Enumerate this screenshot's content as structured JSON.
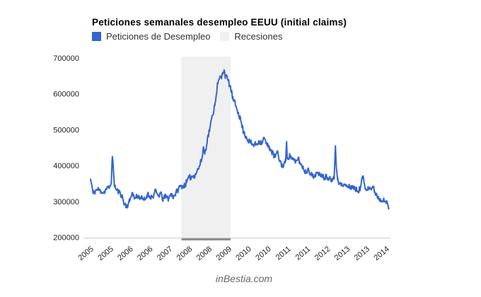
{
  "footer": {
    "watermark": "inBestia.com"
  },
  "chart_data": {
    "type": "line",
    "title": "Peticiones semanales desempleo EEUU (initial claims)",
    "legend": [
      {
        "label": "Peticiones de Desempleo",
        "color": "#3366cc"
      },
      {
        "label": "Recesiones",
        "color": "#f0f0f0"
      }
    ],
    "colors": {
      "line": "#3366cc",
      "recession_band": "#f0f0f0",
      "recession_marker": "#909090",
      "axis_line": "#cccccc",
      "axis_text": "#222222"
    },
    "grid": "off",
    "legend_position": "top-left",
    "y_axis": {
      "min": 200000,
      "max": 700000,
      "tick_step": 100000,
      "ticks": [
        {
          "value": 700000,
          "label": "700000"
        },
        {
          "value": 600000,
          "label": "600000"
        },
        {
          "value": 500000,
          "label": "500000"
        },
        {
          "value": 400000,
          "label": "400000"
        },
        {
          "value": 300000,
          "label": "300000"
        },
        {
          "value": 200000,
          "label": "200000"
        }
      ]
    },
    "x_axis": {
      "min": 2004.8,
      "max": 2014.7,
      "ticks": [
        {
          "t": 2005.0,
          "label": "2005"
        },
        {
          "t": 2005.633,
          "label": "2005"
        },
        {
          "t": 2006.267,
          "label": "2006"
        },
        {
          "t": 2006.9,
          "label": "2006"
        },
        {
          "t": 2007.533,
          "label": "2007"
        },
        {
          "t": 2008.167,
          "label": "2008"
        },
        {
          "t": 2008.8,
          "label": "2008"
        },
        {
          "t": 2009.433,
          "label": "2009"
        },
        {
          "t": 2010.067,
          "label": "2010"
        },
        {
          "t": 2010.7,
          "label": "2010"
        },
        {
          "t": 2011.333,
          "label": "2011"
        },
        {
          "t": 2011.967,
          "label": "2011"
        },
        {
          "t": 2012.6,
          "label": "2012"
        },
        {
          "t": 2013.233,
          "label": "2013"
        },
        {
          "t": 2013.867,
          "label": "2013"
        },
        {
          "t": 2014.5,
          "label": "2014"
        }
      ]
    },
    "recessions": [
      {
        "start": 2007.92,
        "end": 2009.5
      }
    ],
    "series": [
      {
        "name": "Peticiones de Desempleo",
        "color": "#3366cc",
        "points": [
          [
            2005.0,
            362000
          ],
          [
            2005.04,
            345000
          ],
          [
            2005.08,
            322000
          ],
          [
            2005.17,
            331000
          ],
          [
            2005.25,
            333000
          ],
          [
            2005.33,
            329000
          ],
          [
            2005.42,
            324000
          ],
          [
            2005.5,
            334000
          ],
          [
            2005.58,
            338000
          ],
          [
            2005.63,
            342000
          ],
          [
            2005.67,
            360000
          ],
          [
            2005.7,
            425000
          ],
          [
            2005.73,
            394000
          ],
          [
            2005.77,
            345000
          ],
          [
            2005.83,
            332000
          ],
          [
            2005.92,
            325000
          ],
          [
            2006.0,
            318000
          ],
          [
            2006.08,
            293000
          ],
          [
            2006.17,
            287000
          ],
          [
            2006.25,
            299000
          ],
          [
            2006.33,
            324000
          ],
          [
            2006.42,
            308000
          ],
          [
            2006.5,
            316000
          ],
          [
            2006.58,
            312000
          ],
          [
            2006.67,
            306000
          ],
          [
            2006.75,
            304000
          ],
          [
            2006.83,
            320000
          ],
          [
            2006.92,
            314000
          ],
          [
            2007.0,
            312000
          ],
          [
            2007.08,
            328000
          ],
          [
            2007.17,
            316000
          ],
          [
            2007.25,
            322000
          ],
          [
            2007.33,
            306000
          ],
          [
            2007.42,
            314000
          ],
          [
            2007.5,
            308000
          ],
          [
            2007.58,
            320000
          ],
          [
            2007.67,
            314000
          ],
          [
            2007.75,
            324000
          ],
          [
            2007.83,
            336000
          ],
          [
            2007.92,
            344000
          ],
          [
            2008.0,
            343000
          ],
          [
            2008.08,
            352000
          ],
          [
            2008.17,
            366000
          ],
          [
            2008.25,
            369000
          ],
          [
            2008.33,
            372000
          ],
          [
            2008.42,
            384000
          ],
          [
            2008.5,
            398000
          ],
          [
            2008.58,
            420000
          ],
          [
            2008.63,
            452000
          ],
          [
            2008.67,
            432000
          ],
          [
            2008.75,
            472000
          ],
          [
            2008.83,
            502000
          ],
          [
            2008.92,
            540000
          ],
          [
            2009.0,
            574000
          ],
          [
            2009.08,
            626000
          ],
          [
            2009.17,
            648000
          ],
          [
            2009.21,
            644000
          ],
          [
            2009.25,
            660000
          ],
          [
            2009.29,
            667000
          ],
          [
            2009.33,
            651000
          ],
          [
            2009.42,
            637000
          ],
          [
            2009.5,
            617000
          ],
          [
            2009.58,
            584000
          ],
          [
            2009.67,
            566000
          ],
          [
            2009.75,
            548000
          ],
          [
            2009.83,
            524000
          ],
          [
            2009.92,
            492000
          ],
          [
            2010.0,
            481000
          ],
          [
            2010.08,
            469000
          ],
          [
            2010.17,
            461000
          ],
          [
            2010.25,
            457000
          ],
          [
            2010.33,
            461000
          ],
          [
            2010.42,
            468000
          ],
          [
            2010.5,
            464000
          ],
          [
            2010.58,
            477000
          ],
          [
            2010.67,
            456000
          ],
          [
            2010.75,
            451000
          ],
          [
            2010.83,
            437000
          ],
          [
            2010.92,
            423000
          ],
          [
            2011.0,
            437000
          ],
          [
            2011.08,
            413000
          ],
          [
            2011.17,
            398000
          ],
          [
            2011.27,
            412000
          ],
          [
            2011.3,
            467000
          ],
          [
            2011.32,
            424000
          ],
          [
            2011.42,
            426000
          ],
          [
            2011.5,
            418000
          ],
          [
            2011.58,
            407000
          ],
          [
            2011.67,
            421000
          ],
          [
            2011.75,
            403000
          ],
          [
            2011.83,
            395000
          ],
          [
            2011.92,
            379000
          ],
          [
            2012.0,
            393000
          ],
          [
            2012.08,
            376000
          ],
          [
            2012.17,
            366000
          ],
          [
            2012.25,
            381000
          ],
          [
            2012.33,
            372000
          ],
          [
            2012.42,
            377000
          ],
          [
            2012.5,
            366000
          ],
          [
            2012.58,
            371000
          ],
          [
            2012.67,
            365000
          ],
          [
            2012.75,
            363000
          ],
          [
            2012.83,
            371000
          ],
          [
            2012.87,
            451000
          ],
          [
            2012.9,
            393000
          ],
          [
            2012.94,
            366000
          ],
          [
            2013.0,
            349000
          ],
          [
            2013.08,
            344000
          ],
          [
            2013.17,
            346000
          ],
          [
            2013.25,
            341000
          ],
          [
            2013.33,
            339000
          ],
          [
            2013.42,
            343000
          ],
          [
            2013.5,
            334000
          ],
          [
            2013.58,
            329000
          ],
          [
            2013.67,
            337000
          ],
          [
            2013.75,
            371000
          ],
          [
            2013.79,
            351000
          ],
          [
            2013.83,
            335000
          ],
          [
            2013.92,
            341000
          ],
          [
            2014.0,
            336000
          ],
          [
            2014.08,
            338000
          ],
          [
            2014.17,
            321000
          ],
          [
            2014.25,
            311000
          ],
          [
            2014.33,
            303000
          ],
          [
            2014.42,
            309000
          ],
          [
            2014.5,
            297000
          ],
          [
            2014.58,
            282000
          ]
        ]
      }
    ],
    "render": {
      "weekly_step": 0.019231,
      "noise_amplitude": 8500,
      "noise_seed": 11
    }
  }
}
